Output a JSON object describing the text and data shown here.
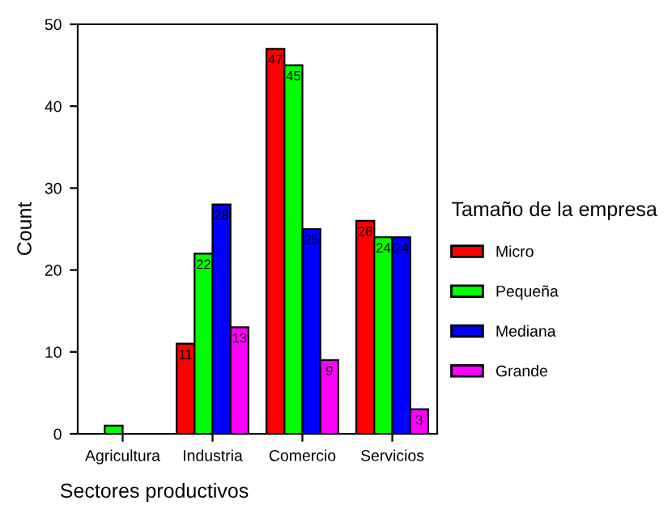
{
  "chart_data": {
    "type": "bar",
    "xlabel": "Sectores productivos",
    "ylabel": "Count",
    "legend_title": "Tamaño de la empresa",
    "legend": "right",
    "categories": [
      "Agricultura",
      "Industria",
      "Comercio",
      "Servicios"
    ],
    "ylim": [
      0,
      50
    ],
    "yticks": [
      0,
      10,
      20,
      30,
      40,
      50
    ],
    "grid": false,
    "series": [
      {
        "name": "Micro",
        "color": "#ff0000",
        "values": [
          null,
          11,
          47,
          26
        ],
        "value_labels": [
          null,
          "11",
          "47",
          "26"
        ]
      },
      {
        "name": "Pequeña",
        "color": "#00ff00",
        "values": [
          1,
          22,
          45,
          24
        ],
        "value_labels": [
          null,
          "22",
          "45",
          "24"
        ]
      },
      {
        "name": "Mediana",
        "color": "#0000ff",
        "values": [
          null,
          28,
          25,
          24
        ],
        "value_labels": [
          null,
          "28",
          "25",
          "24"
        ]
      },
      {
        "name": "Grande",
        "color": "#ff00ff",
        "values": [
          null,
          13,
          9,
          3
        ],
        "value_labels": [
          null,
          "13",
          "9",
          "3"
        ]
      }
    ]
  }
}
